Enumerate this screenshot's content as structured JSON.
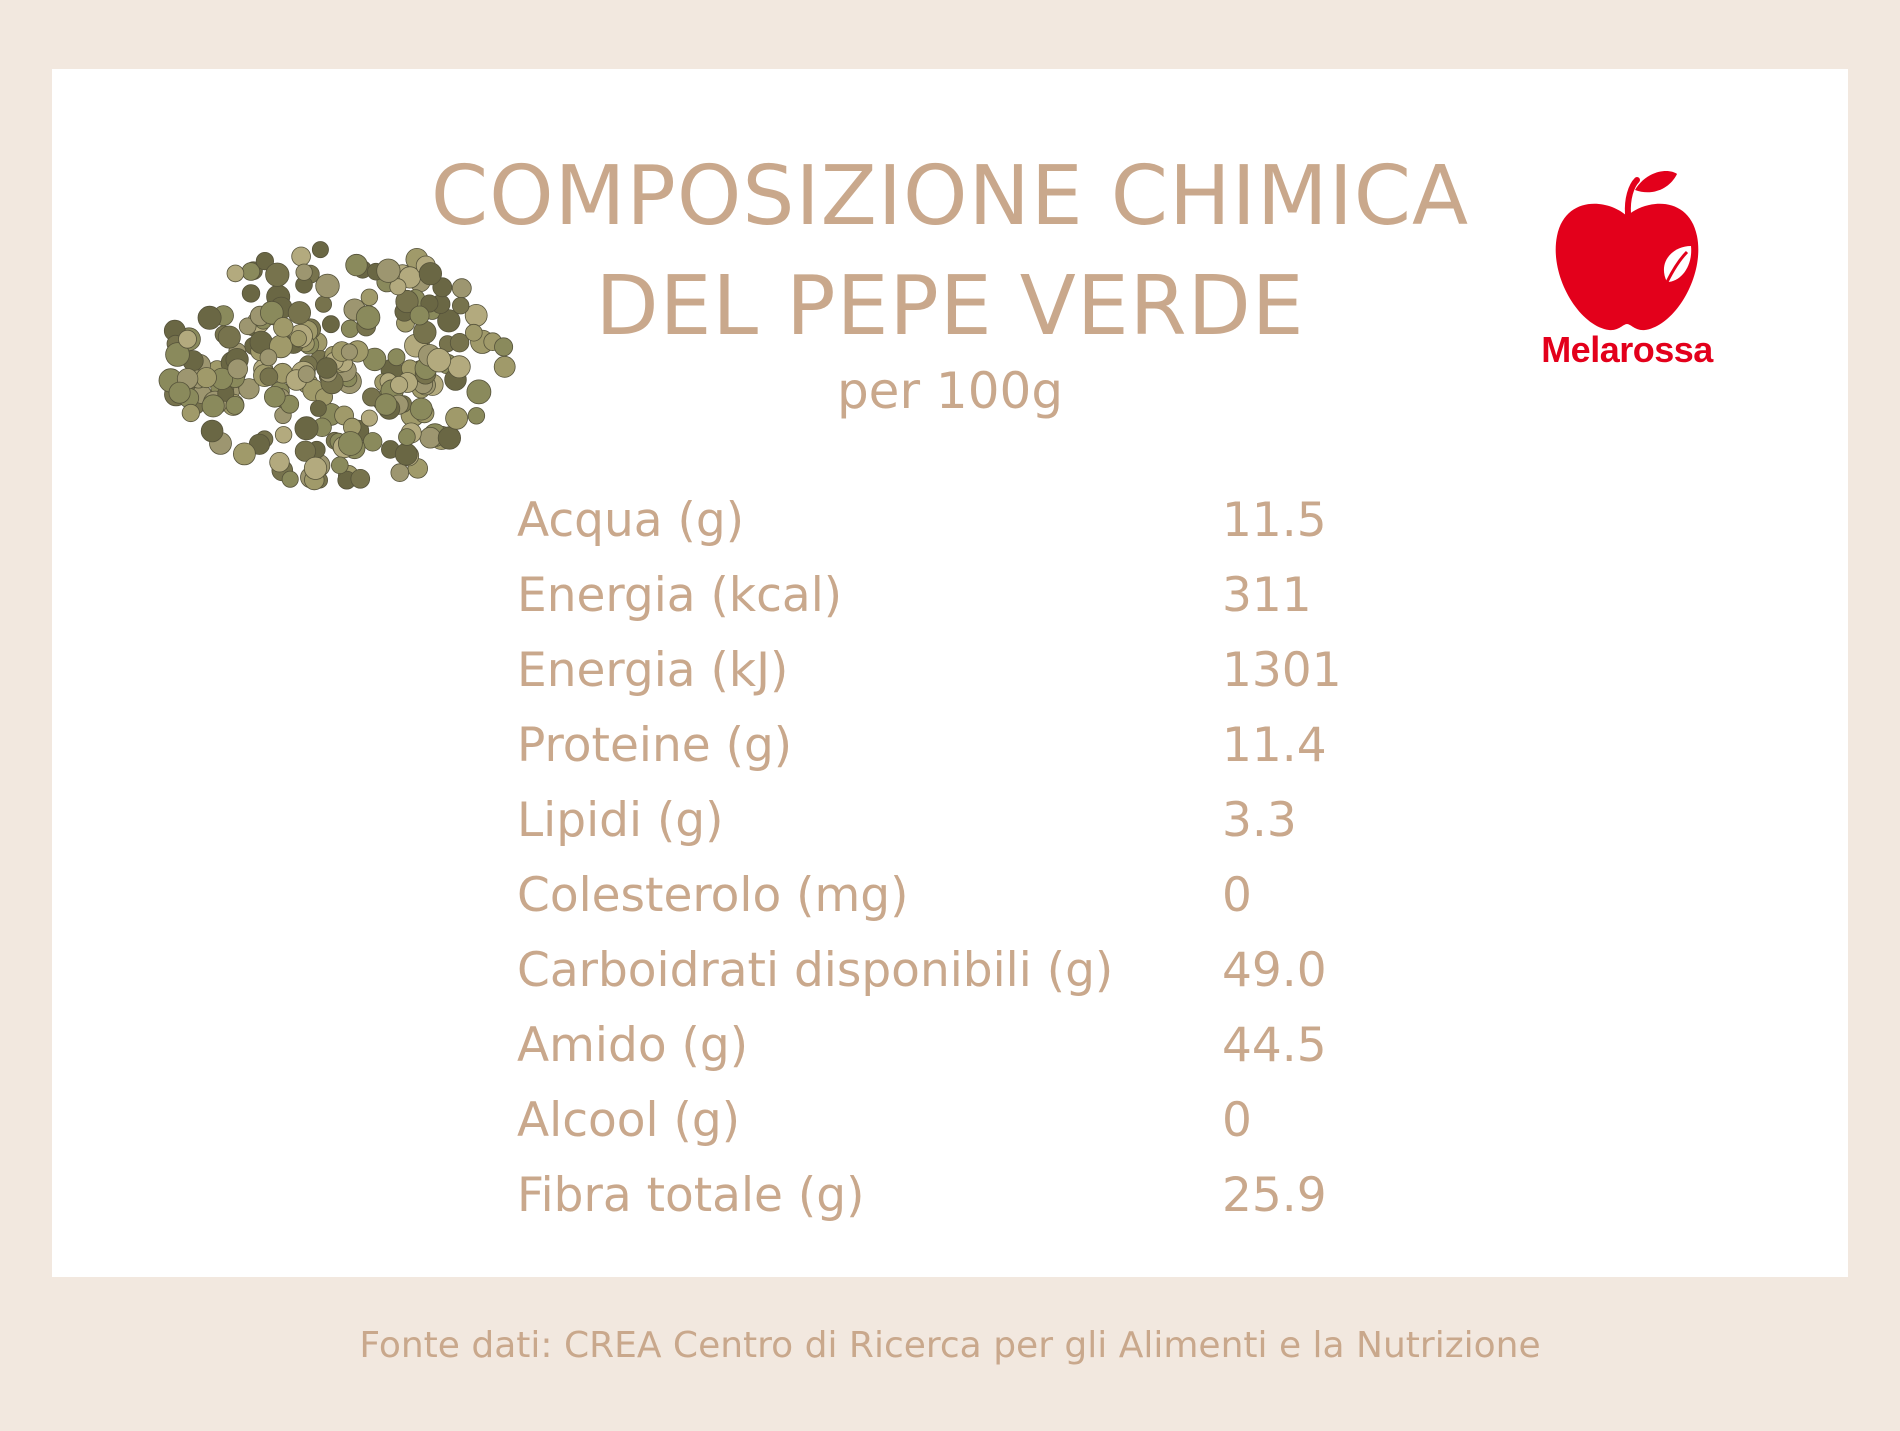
{
  "header": {
    "title_line1": "COMPOSIZIONE CHIMICA",
    "title_line2": "DEL PEPE VERDE",
    "subtitle": "per 100g"
  },
  "brand": {
    "name": "Melarossa",
    "color": "#e3001b"
  },
  "colors": {
    "background": "#f2e8df",
    "card": "#ffffff",
    "text": "#c9a88c"
  },
  "nutrition": {
    "rows": [
      {
        "label": "Acqua (g)",
        "value": "11.5"
      },
      {
        "label": "Energia (kcal)",
        "value": "311"
      },
      {
        "label": "Energia (kJ)",
        "value": "1301"
      },
      {
        "label": "Proteine (g)",
        "value": "11.4"
      },
      {
        "label": "Lipidi (g)",
        "value": "3.3"
      },
      {
        "label": "Colesterolo (mg)",
        "value": "0"
      },
      {
        "label": "Carboidrati disponibili (g)",
        "value": "49.0"
      },
      {
        "label": "Amido (g)",
        "value": "44.5"
      },
      {
        "label": "Alcool (g)",
        "value": "0"
      },
      {
        "label": "Fibra totale (g)",
        "value": "25.9"
      }
    ]
  },
  "footer": {
    "source": "Fonte dati: CREA Centro di Ricerca per gli Alimenti e la Nutrizione"
  }
}
